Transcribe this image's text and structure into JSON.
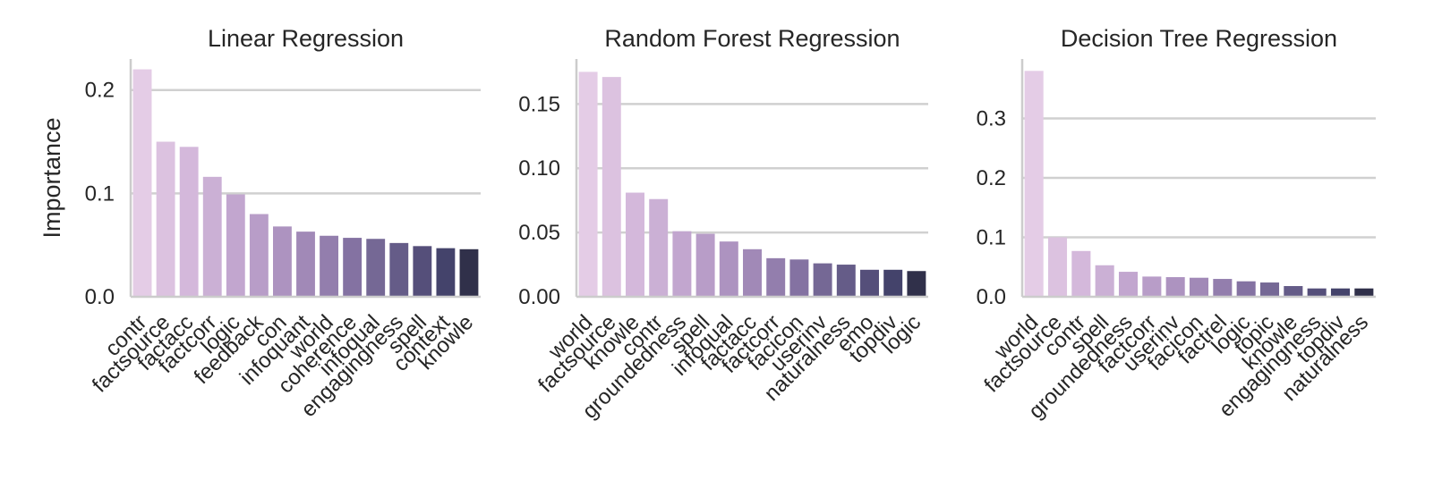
{
  "chart_data": [
    {
      "type": "bar",
      "title": "Linear Regression",
      "ylabel": "Importance",
      "ylim": [
        0,
        0.23
      ],
      "yticks": [
        0.0,
        0.1,
        0.2
      ],
      "ytick_labels": [
        "0.0",
        "0.1",
        "0.2"
      ],
      "grid": true,
      "categories": [
        "contr",
        "factsource",
        "factacc",
        "factcorr",
        "logic",
        "feedback",
        "con",
        "infoquant",
        "world",
        "coherence",
        "infoqual",
        "engagingness",
        "spell",
        "context",
        "knowle"
      ],
      "values": [
        0.22,
        0.15,
        0.145,
        0.116,
        0.099,
        0.08,
        0.068,
        0.063,
        0.059,
        0.057,
        0.056,
        0.052,
        0.049,
        0.047,
        0.046
      ]
    },
    {
      "type": "bar",
      "title": "Random Forest Regression",
      "ylabel": "",
      "ylim": [
        0,
        0.185
      ],
      "yticks": [
        0.0,
        0.05,
        0.1,
        0.15
      ],
      "ytick_labels": [
        "0.00",
        "0.05",
        "0.10",
        "0.15"
      ],
      "grid": true,
      "categories": [
        "world",
        "factsource",
        "knowle",
        "contr",
        "groundedness",
        "spell",
        "infoqual",
        "factacc",
        "factcorr",
        "facicon",
        "userinv",
        "naturalness",
        "emo",
        "topdiv",
        "logic"
      ],
      "values": [
        0.175,
        0.171,
        0.081,
        0.076,
        0.051,
        0.049,
        0.043,
        0.037,
        0.03,
        0.029,
        0.026,
        0.025,
        0.021,
        0.021,
        0.02
      ]
    },
    {
      "type": "bar",
      "title": "Decision Tree Regression",
      "ylabel": "",
      "ylim": [
        0,
        0.4
      ],
      "yticks": [
        0.0,
        0.1,
        0.2,
        0.3
      ],
      "ytick_labels": [
        "0.0",
        "0.1",
        "0.2",
        "0.3"
      ],
      "grid": true,
      "categories": [
        "world",
        "factsource",
        "contr",
        "spell",
        "groundedness",
        "factcorr",
        "userinv",
        "facicon",
        "factrel",
        "logic",
        "topic",
        "knowle",
        "engagingness",
        "topdiv",
        "naturalness"
      ],
      "values": [
        0.38,
        0.1,
        0.077,
        0.053,
        0.042,
        0.034,
        0.033,
        0.032,
        0.03,
        0.026,
        0.024,
        0.018,
        0.014,
        0.014,
        0.014
      ]
    }
  ],
  "colors": [
    "#e4cce6",
    "#dcc2e0",
    "#d4b8db",
    "#cbb0d5",
    "#c2a6cf",
    "#b89dc8",
    "#ad93c0",
    "#a189b7",
    "#937ead",
    "#8472a2",
    "#756895",
    "#655c88",
    "#554f7a",
    "#44436b",
    "#30304a",
    "#262a40"
  ]
}
